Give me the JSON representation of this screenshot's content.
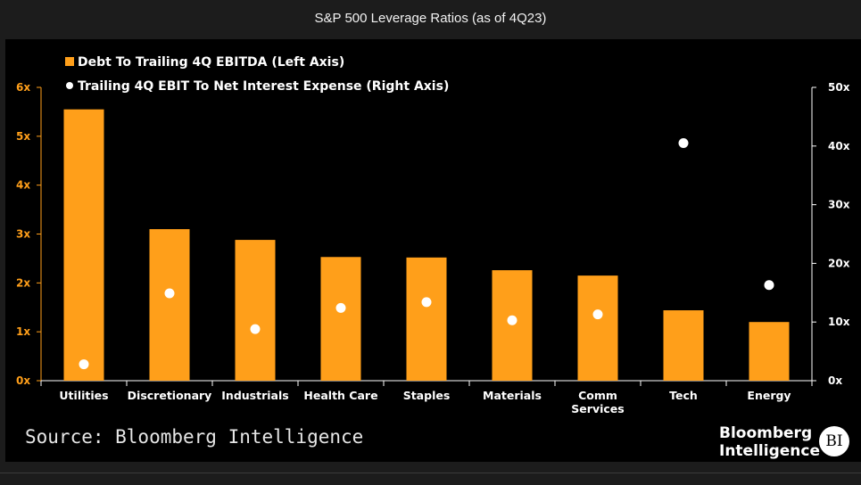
{
  "header": {
    "title": "S&P 500 Leverage Ratios (as of 4Q23)"
  },
  "footer": {
    "source": "Source: Bloomberg Intelligence",
    "logo_line1": "Bloomberg",
    "logo_line2": "Intelligence",
    "logo_badge": "BI"
  },
  "colors": {
    "bars": "#ff9f1a",
    "dots": "#ffffff",
    "left_axis": "#ff9f1a",
    "right_axis": "#ffffff",
    "background": "#000000"
  },
  "chart_data": {
    "type": "bar",
    "title": "S&P 500 Leverage Ratios (as of 4Q23)",
    "categories": [
      "Utilities",
      "Discretionary",
      "Industrials",
      "Health Care",
      "Staples",
      "Materials",
      "Comm Services",
      "Tech",
      "Energy"
    ],
    "category_lines": [
      [
        "Utilities"
      ],
      [
        "Discretionary"
      ],
      [
        "Industrials"
      ],
      [
        "Health Care"
      ],
      [
        "Staples"
      ],
      [
        "Materials"
      ],
      [
        "Comm",
        "Services"
      ],
      [
        "Tech"
      ],
      [
        "Energy"
      ]
    ],
    "series": [
      {
        "name": "Debt To Trailing 4Q EBITDA (Left Axis)",
        "type": "bar",
        "axis": "left",
        "values": [
          5.55,
          3.1,
          2.88,
          2.53,
          2.52,
          2.26,
          2.15,
          1.44,
          1.2
        ]
      },
      {
        "name": "Trailing 4Q EBIT To Net Interest Expense (Right Axis)",
        "type": "scatter",
        "axis": "right",
        "values": [
          2.8,
          14.9,
          8.8,
          12.4,
          13.4,
          10.3,
          11.3,
          40.5,
          16.3
        ]
      }
    ],
    "left_axis": {
      "ylim": [
        0,
        6
      ],
      "ticks": [
        "0x",
        "1x",
        "2x",
        "3x",
        "4x",
        "5x",
        "6x"
      ]
    },
    "right_axis": {
      "ylim": [
        0,
        50
      ],
      "ticks": [
        "0x",
        "10x",
        "20x",
        "30x",
        "40x",
        "50x"
      ]
    },
    "legend_position": "top-left",
    "grid": false
  }
}
